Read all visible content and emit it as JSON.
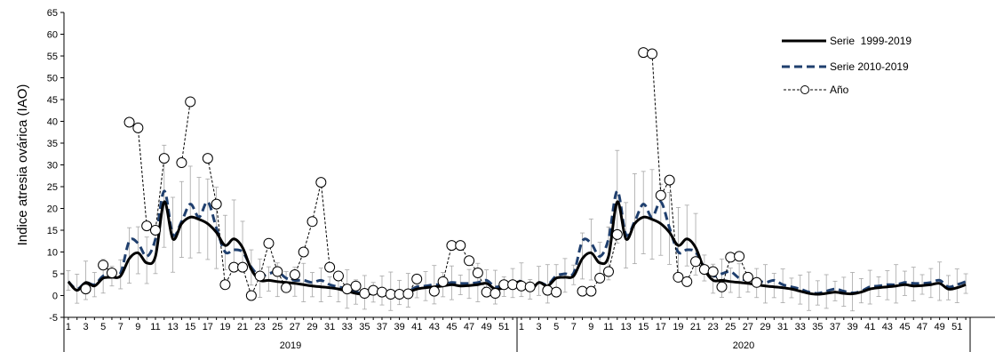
{
  "chart_data": {
    "type": "line",
    "ylabel": "Indice atresia ovárica (IAO)",
    "ylim": [
      -5,
      65
    ],
    "yticks": [
      -5,
      0,
      5,
      10,
      15,
      20,
      25,
      30,
      35,
      40,
      45,
      50,
      55,
      60,
      65
    ],
    "years": [
      "2019",
      "2020"
    ],
    "weeks_per_year": 52,
    "xtick_labels": [
      "1",
      "3",
      "5",
      "7",
      "9",
      "11",
      "13",
      "15",
      "17",
      "19",
      "21",
      "23",
      "25",
      "27",
      "29",
      "31",
      "33",
      "35",
      "37",
      "39",
      "41",
      "43",
      "45",
      "47",
      "49",
      "51"
    ],
    "legend_position": "top-right",
    "grid": false,
    "series": [
      {
        "name": "Serie  1999-2019",
        "style": "solid",
        "color": "#000000",
        "values": [
          3.2,
          1.2,
          3.0,
          2.2,
          4.0,
          4.2,
          4.5,
          8.5,
          9.8,
          7.5,
          9.0,
          21.5,
          13.0,
          16.5,
          18.0,
          17.5,
          16.5,
          14.5,
          11.5,
          13.0,
          11.0,
          6.0,
          3.5,
          3.5,
          3.2,
          3.0,
          2.8,
          2.5,
          2.2,
          2.0,
          1.8,
          1.5,
          1.0,
          0.5,
          0.3,
          0.5,
          0.8,
          0.5,
          0.4,
          0.8,
          1.5,
          1.8,
          2.0,
          2.2,
          2.5,
          2.2,
          2.3,
          2.5,
          2.8,
          1.5,
          1.8,
          2.5
        ]
      },
      {
        "name": "Serie 2010-2019",
        "style": "dashed",
        "color": "#1f3f6e",
        "values": [
          3.2,
          1.5,
          3.0,
          2.5,
          4.5,
          5.0,
          5.2,
          12.5,
          12.0,
          9.0,
          13.0,
          24.0,
          14.0,
          17.0,
          21.0,
          18.0,
          21.5,
          15.5,
          10.0,
          10.5,
          10.0,
          6.5,
          4.5,
          5.0,
          5.5,
          4.0,
          3.5,
          3.5,
          3.0,
          3.5,
          2.5,
          2.0,
          1.5,
          0.8,
          0.5,
          1.0,
          1.5,
          1.0,
          0.6,
          1.0,
          2.0,
          2.2,
          2.5,
          2.5,
          3.0,
          2.8,
          2.8,
          3.0,
          3.5,
          2.0,
          2.5,
          3.2
        ]
      },
      {
        "name": "Año",
        "style": "dotted-markers",
        "color": "#000000",
        "year2019": [
          null,
          null,
          1.5,
          null,
          7.0,
          5.2,
          null,
          39.8,
          38.5,
          16.0,
          15.0,
          31.5,
          null,
          30.5,
          44.5,
          null,
          31.5,
          21.0,
          2.5,
          6.5,
          6.5,
          0.0,
          4.5,
          12.0,
          5.5,
          1.8,
          4.8,
          10.0,
          17.0,
          26.0,
          6.5,
          4.5,
          1.5,
          2.2,
          0.5,
          1.2,
          0.8,
          0.3,
          0.3,
          0.4,
          3.8,
          null,
          1.0,
          3.2,
          11.5,
          11.5,
          8.0,
          5.2,
          0.8,
          0.5,
          2.5,
          2.5
        ],
        "year2020": [
          2.2,
          2.0,
          null,
          1.2,
          0.8,
          null,
          null,
          1.0,
          1.0,
          4.0,
          5.5,
          14.0,
          null,
          null,
          55.8,
          55.5,
          23.0,
          26.5,
          4.2,
          3.2,
          7.8,
          6.0,
          5.5,
          2.0,
          8.8,
          9.0,
          4.2,
          3.0,
          null,
          null,
          null,
          null,
          null,
          null,
          null,
          null,
          null,
          null,
          null,
          null,
          null,
          null,
          null,
          null,
          null,
          null,
          null,
          null,
          null,
          null,
          null,
          null
        ]
      }
    ]
  }
}
